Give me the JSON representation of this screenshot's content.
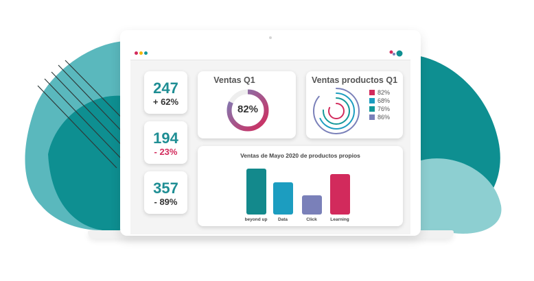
{
  "colors": {
    "teal_dark": "#0e8f91",
    "teal_light": "#5ab8bd",
    "teal_pale": "#8dcfd1",
    "magenta": "#d22a5c",
    "blue": "#1c9dc0",
    "purple": "#7a80b9",
    "positive_text": "#333333",
    "negative_text": "#d22a5c",
    "number_text": "#1f8e94"
  },
  "kpis": [
    {
      "value": "247",
      "delta": "+ 62%",
      "trend": "up"
    },
    {
      "value": "194",
      "delta": "- 23%",
      "trend": "down"
    },
    {
      "value": "357",
      "delta": "- 89%",
      "trend": "down"
    }
  ],
  "ventas_q1": {
    "title": "Ventas Q1",
    "center_label": "82%",
    "percent": 82
  },
  "ventas_productos": {
    "title": "Ventas productos Q1",
    "legend": [
      {
        "label": "82%",
        "color": "#d22a5c",
        "value": 82
      },
      {
        "label": "68%",
        "color": "#1c9dc0",
        "value": 68
      },
      {
        "label": "76%",
        "color": "#13989a",
        "value": 76
      },
      {
        "label": "86%",
        "color": "#7a80b9",
        "value": 86
      }
    ]
  },
  "chart_data": {
    "type": "bar",
    "title": "Ventas de Mayo 2020 de productos propios",
    "categories": [
      "beyond up",
      "Data",
      "Click",
      "Learning"
    ],
    "values": [
      100,
      70,
      42,
      88
    ],
    "colors": [
      "#13898c",
      "#1c9dc0",
      "#7a80b9",
      "#d22a5c"
    ],
    "xlabel": "",
    "ylabel": "",
    "ylim": [
      0,
      100
    ],
    "grid": false
  },
  "window_controls": [
    "close-dot",
    "minimize-dot",
    "maximize-dot"
  ]
}
